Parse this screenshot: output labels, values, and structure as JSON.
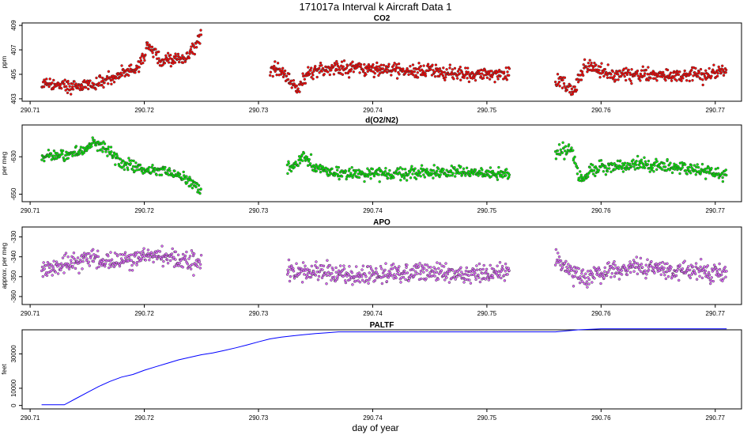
{
  "figure": {
    "title": "171017a   Interval k Aircraft Data 1",
    "xlabel": "day of year"
  },
  "chart_data": [
    {
      "type": "scatter",
      "title": "CO2",
      "ylabel": "ppm",
      "xlim": [
        290.7093,
        290.7723
      ],
      "ylim": [
        402.8,
        409.2
      ],
      "xticks": [
        290.71,
        290.72,
        290.73,
        290.74,
        290.75,
        290.76,
        290.77
      ],
      "xtick_labels": [
        "290.71",
        "290.72",
        "290.73",
        "290.74",
        "290.75",
        "290.76",
        "290.77"
      ],
      "yticks": [
        403,
        405,
        407,
        409
      ],
      "ytick_labels": [
        "403",
        "405",
        "407",
        "409"
      ],
      "color": "#ff0000",
      "n_points": 1100,
      "spread": 0.28,
      "segments": [
        {
          "x": [
            290.711,
            290.7125,
            290.714,
            290.7155,
            290.717,
            290.7185,
            290.7195,
            290.7205,
            290.7215,
            290.7225,
            290.7235,
            290.7245,
            290.725
          ],
          "y": [
            404.2,
            404.1,
            404.0,
            404.1,
            404.6,
            405.2,
            405.6,
            407.5,
            406.0,
            406.3,
            406.2,
            407.4,
            408.5
          ]
        },
        {
          "x": [
            290.731,
            290.732,
            290.733,
            290.7335,
            290.7345,
            290.736,
            290.74,
            290.745,
            290.75,
            290.752
          ],
          "y": [
            405.5,
            405.3,
            404.3,
            403.9,
            405.3,
            405.6,
            405.4,
            405.2,
            405.0,
            405.1
          ]
        },
        {
          "x": [
            290.756,
            290.7575,
            290.7585,
            290.759,
            290.761,
            290.765,
            290.769,
            290.771
          ],
          "y": [
            404.7,
            403.5,
            405.6,
            405.7,
            405.0,
            404.9,
            405.0,
            405.4
          ]
        }
      ]
    },
    {
      "type": "scatter",
      "title": "d(O2/N2)",
      "ylabel": "per meg",
      "xlim": [
        290.7093,
        290.7723
      ],
      "ylim": [
        -654,
        -613
      ],
      "xticks": [
        290.71,
        290.72,
        290.73,
        290.74,
        290.75,
        290.76,
        290.77
      ],
      "xtick_labels": [
        "290.71",
        "290.72",
        "290.73",
        "290.74",
        "290.75",
        "290.76",
        "290.77"
      ],
      "yticks": [
        -650,
        -630
      ],
      "ytick_labels": [
        "-650",
        "-630"
      ],
      "color": "#00ee00",
      "n_points": 1000,
      "spread": 1.6,
      "segments": [
        {
          "x": [
            290.711,
            290.713,
            290.7145,
            290.7155,
            290.7165,
            290.718,
            290.72,
            290.722,
            290.7235,
            290.7245,
            290.725
          ],
          "y": [
            -630,
            -629,
            -628,
            -623,
            -625,
            -633,
            -637,
            -638,
            -641,
            -646,
            -648
          ]
        },
        {
          "x": [
            290.7325,
            290.7335,
            290.734,
            290.735,
            290.737,
            290.742,
            290.747,
            290.752
          ],
          "y": [
            -637,
            -633,
            -629,
            -636,
            -639,
            -639,
            -638,
            -639
          ]
        },
        {
          "x": [
            290.756,
            290.757,
            290.7575,
            290.758,
            290.7585,
            290.759,
            290.761,
            290.763,
            290.767,
            290.771
          ],
          "y": [
            -628,
            -626,
            -628,
            -640,
            -643,
            -637,
            -635,
            -634,
            -636,
            -640
          ]
        }
      ]
    },
    {
      "type": "scatter",
      "title": "APO",
      "ylabel": "approx. per meg",
      "xlim": [
        290.7093,
        290.7723
      ],
      "ylim": [
        -364,
        -325
      ],
      "xticks": [
        290.71,
        290.72,
        290.73,
        290.74,
        290.75,
        290.76,
        290.77
      ],
      "xtick_labels": [
        "290.71",
        "290.72",
        "290.73",
        "290.74",
        "290.75",
        "290.76",
        "290.77"
      ],
      "yticks": [
        -360,
        -350,
        -340,
        -330
      ],
      "ytick_labels": [
        "-360",
        "-350",
        "-340",
        "-330"
      ],
      "color": "#e066ff",
      "n_points": 1050,
      "spread": 2.4,
      "segments": [
        {
          "x": [
            290.711,
            290.713,
            290.715,
            290.717,
            290.719,
            290.721,
            290.723,
            290.725
          ],
          "y": [
            -346,
            -344,
            -340,
            -342,
            -341,
            -339,
            -342,
            -343
          ]
        },
        {
          "x": [
            290.7325,
            290.735,
            290.738,
            290.742,
            290.746,
            290.75,
            290.752
          ],
          "y": [
            -348,
            -347,
            -350,
            -349,
            -348,
            -349,
            -348
          ]
        },
        {
          "x": [
            290.756,
            290.757,
            290.7585,
            290.76,
            290.763,
            290.767,
            290.771
          ],
          "y": [
            -342,
            -346,
            -352,
            -347,
            -345,
            -347,
            -349
          ]
        }
      ]
    },
    {
      "type": "line",
      "title": "PALTF",
      "ylabel": "feet",
      "xlim": [
        290.7093,
        290.7723
      ],
      "ylim": [
        -2000,
        44000
      ],
      "xticks": [
        290.71,
        290.72,
        290.73,
        290.74,
        290.75,
        290.76,
        290.77
      ],
      "xtick_labels": [
        "290.71",
        "290.72",
        "290.73",
        "290.74",
        "290.75",
        "290.76",
        "290.77"
      ],
      "yticks": [
        0,
        10000,
        30000
      ],
      "ytick_labels": [
        "0",
        "10000",
        "30000"
      ],
      "color": "#0000ff",
      "x": [
        290.711,
        290.713,
        290.714,
        290.715,
        290.716,
        290.717,
        290.718,
        290.719,
        290.72,
        290.721,
        290.722,
        290.723,
        290.724,
        290.725,
        290.726,
        290.727,
        290.728,
        290.729,
        290.73,
        290.731,
        290.732,
        290.733,
        290.734,
        290.735,
        290.736,
        290.737,
        290.74,
        290.745,
        290.75,
        290.756,
        290.758,
        290.76,
        290.765,
        290.771
      ],
      "y": [
        400,
        400,
        4000,
        7500,
        11000,
        14000,
        16500,
        18000,
        20500,
        22500,
        24500,
        26500,
        28000,
        29500,
        30500,
        32000,
        33500,
        35200,
        37000,
        38700,
        39700,
        40500,
        41200,
        41800,
        42300,
        42800,
        42800,
        42800,
        42800,
        42800,
        44000,
        44600,
        44600,
        44600
      ]
    }
  ]
}
